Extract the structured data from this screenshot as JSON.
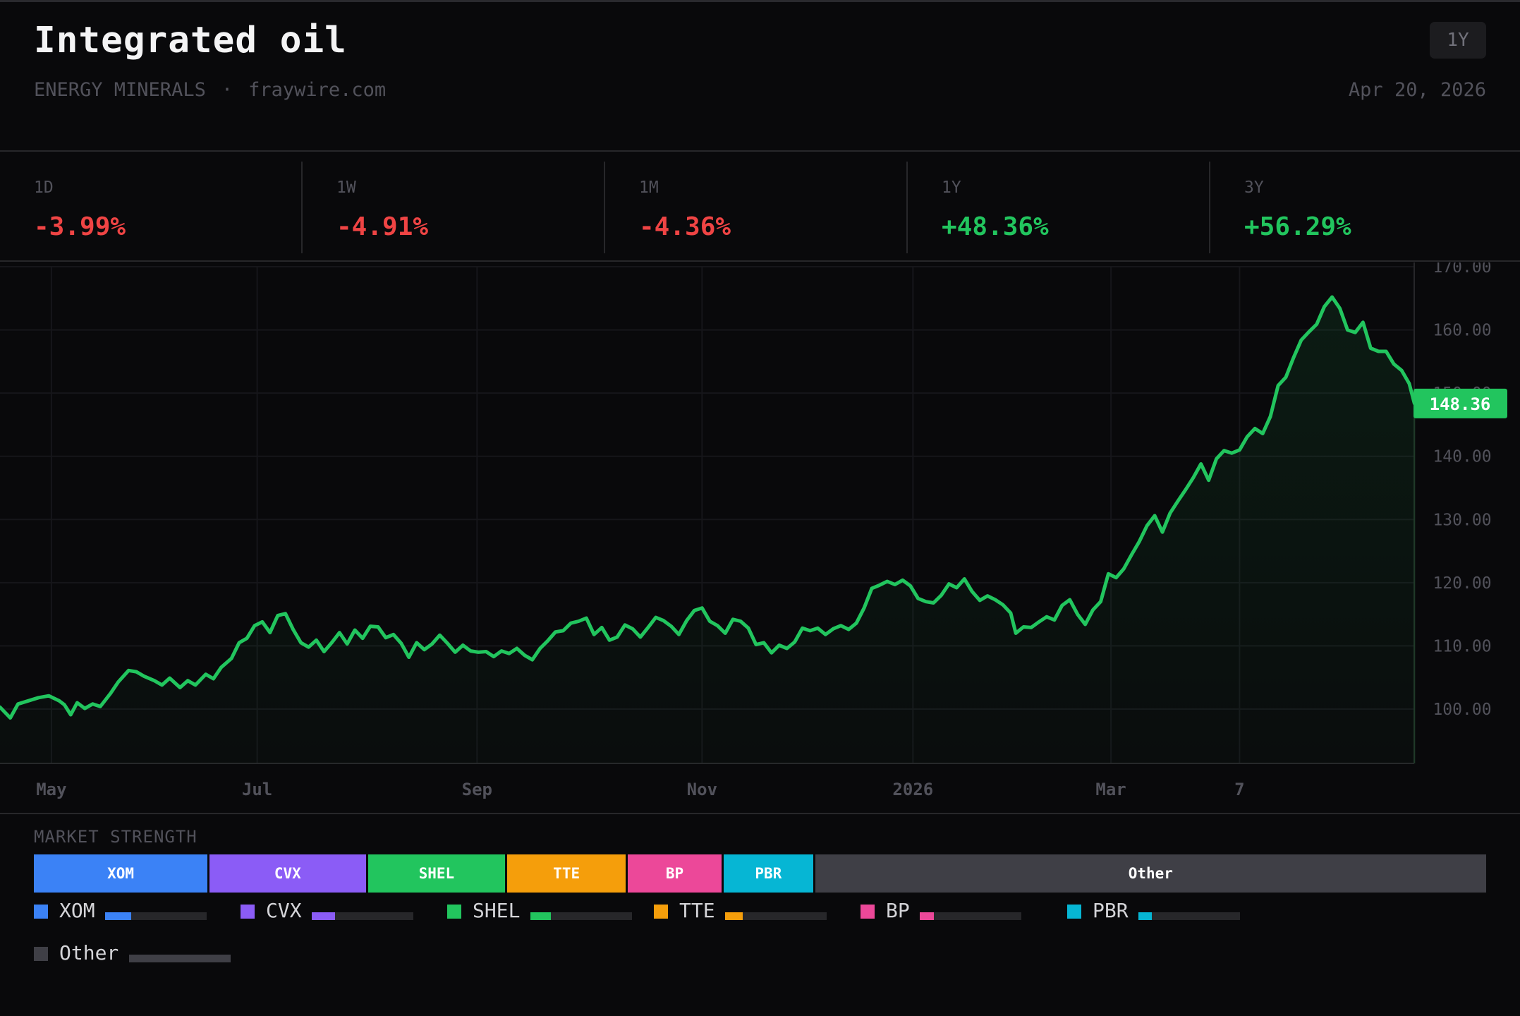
{
  "header": {
    "title": "Integrated oil",
    "category": "ENERGY MINERALS",
    "separator": "·",
    "source": "fraywire.com",
    "range_button": "1Y",
    "date": "Apr 20, 2026"
  },
  "stats": [
    {
      "label": "1D",
      "value": "-3.99%",
      "direction": "down"
    },
    {
      "label": "1W",
      "value": "-4.91%",
      "direction": "down"
    },
    {
      "label": "1M",
      "value": "-4.36%",
      "direction": "down"
    },
    {
      "label": "1Y",
      "value": "+48.36%",
      "direction": "up"
    },
    {
      "label": "3Y",
      "value": "+56.29%",
      "direction": "up"
    }
  ],
  "colors": {
    "up": "#22c55e",
    "down": "#ef4444",
    "line": "#22c55e",
    "background": "#09090b"
  },
  "chart_data": {
    "type": "area",
    "last_value_label": "148.36",
    "y_ticks": [
      "100.00",
      "110.00",
      "120.00",
      "130.00",
      "140.00",
      "150.00",
      "160.00",
      "170.00"
    ],
    "y_tick_values": [
      100,
      110,
      120,
      130,
      140,
      150,
      160,
      170
    ],
    "ylim": [
      91.4,
      170
    ],
    "x_ticks": [
      {
        "label": "May",
        "x": 0.04
      },
      {
        "label": "Jul",
        "x": 0.2
      },
      {
        "label": "Sep",
        "x": 0.371
      },
      {
        "label": "Nov",
        "x": 0.546
      },
      {
        "label": "2026",
        "x": 0.71
      },
      {
        "label": "Mar",
        "x": 0.864
      },
      {
        "label": "7",
        "x": 0.964
      }
    ],
    "grid": true,
    "series": [
      {
        "points": [
          [
            0.0,
            100.3
          ],
          [
            0.008,
            98.6
          ],
          [
            0.014,
            100.8
          ],
          [
            0.022,
            101.3
          ],
          [
            0.03,
            101.8
          ],
          [
            0.038,
            102.1
          ],
          [
            0.046,
            101.3
          ],
          [
            0.05,
            100.7
          ],
          [
            0.055,
            99.1
          ],
          [
            0.06,
            101.0
          ],
          [
            0.066,
            100.1
          ],
          [
            0.072,
            100.8
          ],
          [
            0.078,
            100.4
          ],
          [
            0.086,
            102.5
          ],
          [
            0.092,
            104.3
          ],
          [
            0.1,
            106.1
          ],
          [
            0.106,
            105.9
          ],
          [
            0.112,
            105.2
          ],
          [
            0.12,
            104.5
          ],
          [
            0.126,
            103.8
          ],
          [
            0.132,
            104.9
          ],
          [
            0.14,
            103.4
          ],
          [
            0.146,
            104.5
          ],
          [
            0.152,
            103.8
          ],
          [
            0.16,
            105.5
          ],
          [
            0.166,
            104.8
          ],
          [
            0.172,
            106.6
          ],
          [
            0.18,
            108.0
          ],
          [
            0.186,
            110.5
          ],
          [
            0.192,
            111.2
          ],
          [
            0.198,
            113.2
          ],
          [
            0.204,
            113.8
          ],
          [
            0.21,
            112.1
          ],
          [
            0.216,
            114.8
          ],
          [
            0.222,
            115.1
          ],
          [
            0.228,
            112.6
          ],
          [
            0.234,
            110.5
          ],
          [
            0.24,
            109.8
          ],
          [
            0.246,
            110.9
          ],
          [
            0.252,
            109.1
          ],
          [
            0.258,
            110.5
          ],
          [
            0.264,
            112.1
          ],
          [
            0.27,
            110.3
          ],
          [
            0.276,
            112.5
          ],
          [
            0.282,
            111.2
          ],
          [
            0.288,
            113.1
          ],
          [
            0.294,
            113.0
          ],
          [
            0.3,
            111.3
          ],
          [
            0.306,
            111.8
          ],
          [
            0.312,
            110.4
          ],
          [
            0.318,
            108.2
          ],
          [
            0.324,
            110.5
          ],
          [
            0.33,
            109.4
          ],
          [
            0.336,
            110.3
          ],
          [
            0.342,
            111.7
          ],
          [
            0.348,
            110.4
          ],
          [
            0.354,
            109.0
          ],
          [
            0.36,
            110.1
          ],
          [
            0.366,
            109.2
          ],
          [
            0.372,
            109.0
          ],
          [
            0.378,
            109.1
          ],
          [
            0.384,
            108.3
          ],
          [
            0.39,
            109.2
          ],
          [
            0.396,
            108.8
          ],
          [
            0.402,
            109.6
          ],
          [
            0.408,
            108.5
          ],
          [
            0.414,
            107.8
          ],
          [
            0.42,
            109.6
          ],
          [
            0.426,
            110.8
          ],
          [
            0.432,
            112.2
          ],
          [
            0.438,
            112.4
          ],
          [
            0.444,
            113.6
          ],
          [
            0.45,
            113.9
          ],
          [
            0.456,
            114.4
          ],
          [
            0.462,
            111.8
          ],
          [
            0.468,
            112.9
          ],
          [
            0.474,
            110.9
          ],
          [
            0.48,
            111.4
          ],
          [
            0.486,
            113.3
          ],
          [
            0.492,
            112.7
          ],
          [
            0.498,
            111.4
          ],
          [
            0.504,
            112.9
          ],
          [
            0.51,
            114.5
          ],
          [
            0.516,
            114.0
          ],
          [
            0.522,
            113.1
          ],
          [
            0.528,
            111.8
          ],
          [
            0.534,
            114.0
          ],
          [
            0.54,
            115.6
          ],
          [
            0.546,
            116.0
          ],
          [
            0.552,
            113.9
          ],
          [
            0.558,
            113.2
          ],
          [
            0.564,
            112.0
          ],
          [
            0.57,
            114.2
          ],
          [
            0.576,
            113.9
          ],
          [
            0.582,
            112.8
          ],
          [
            0.588,
            110.2
          ],
          [
            0.594,
            110.5
          ],
          [
            0.6,
            108.9
          ],
          [
            0.606,
            110.1
          ],
          [
            0.612,
            109.6
          ],
          [
            0.618,
            110.6
          ],
          [
            0.624,
            112.8
          ],
          [
            0.63,
            112.4
          ],
          [
            0.636,
            112.8
          ],
          [
            0.642,
            111.8
          ],
          [
            0.648,
            112.7
          ],
          [
            0.654,
            113.2
          ],
          [
            0.66,
            112.6
          ],
          [
            0.666,
            113.6
          ],
          [
            0.672,
            116.0
          ],
          [
            0.678,
            119.1
          ],
          [
            0.684,
            119.6
          ],
          [
            0.69,
            120.2
          ],
          [
            0.696,
            119.7
          ],
          [
            0.702,
            120.4
          ],
          [
            0.708,
            119.5
          ],
          [
            0.714,
            117.5
          ],
          [
            0.72,
            117.0
          ],
          [
            0.726,
            116.8
          ],
          [
            0.732,
            118.0
          ],
          [
            0.738,
            119.8
          ],
          [
            0.744,
            119.2
          ],
          [
            0.75,
            120.6
          ],
          [
            0.756,
            118.6
          ],
          [
            0.762,
            117.2
          ],
          [
            0.768,
            117.9
          ],
          [
            0.774,
            117.3
          ],
          [
            0.78,
            116.5
          ],
          [
            0.786,
            115.2
          ],
          [
            0.79,
            112.0
          ],
          [
            0.796,
            113.0
          ],
          [
            0.802,
            112.9
          ],
          [
            0.808,
            113.8
          ],
          [
            0.814,
            114.6
          ],
          [
            0.82,
            114.1
          ],
          [
            0.826,
            116.4
          ],
          [
            0.832,
            117.3
          ],
          [
            0.838,
            115.0
          ],
          [
            0.844,
            113.4
          ],
          [
            0.85,
            115.7
          ],
          [
            0.856,
            117.0
          ],
          [
            0.862,
            121.4
          ],
          [
            0.868,
            120.8
          ],
          [
            0.874,
            122.2
          ],
          [
            0.88,
            124.4
          ],
          [
            0.886,
            126.5
          ],
          [
            0.892,
            129.0
          ],
          [
            0.898,
            130.6
          ],
          [
            0.904,
            128.0
          ],
          [
            0.91,
            131.0
          ],
          [
            0.916,
            132.9
          ],
          [
            0.922,
            134.7
          ],
          [
            0.928,
            136.6
          ],
          [
            0.934,
            138.8
          ],
          [
            0.94,
            136.2
          ],
          [
            0.946,
            139.6
          ],
          [
            0.952,
            140.9
          ],
          [
            0.958,
            140.5
          ],
          [
            0.964,
            141.0
          ],
          [
            0.97,
            143.1
          ],
          [
            0.976,
            144.4
          ],
          [
            0.982,
            143.6
          ],
          [
            0.988,
            146.3
          ],
          [
            0.994,
            151.2
          ],
          [
            1.0,
            152.5
          ],
          [
            1.006,
            155.6
          ],
          [
            1.012,
            158.4
          ],
          [
            1.018,
            159.7
          ],
          [
            1.024,
            160.9
          ],
          [
            1.03,
            163.7
          ],
          [
            1.036,
            165.2
          ],
          [
            1.042,
            163.4
          ],
          [
            1.048,
            160.0
          ],
          [
            1.054,
            159.6
          ],
          [
            1.06,
            161.2
          ],
          [
            1.066,
            157.1
          ],
          [
            1.072,
            156.6
          ],
          [
            1.078,
            156.6
          ],
          [
            1.084,
            154.6
          ],
          [
            1.09,
            153.6
          ],
          [
            1.096,
            151.5
          ],
          [
            1.1,
            148.36
          ]
        ]
      }
    ]
  },
  "market_strength": {
    "label": "MARKET STRENGTH",
    "segments": [
      {
        "name": "XOM",
        "share": 12.1,
        "color": "#3b82f6"
      },
      {
        "name": "CVX",
        "share": 10.9,
        "color": "#8b5cf6"
      },
      {
        "name": "SHEL",
        "share": 9.6,
        "color": "#22c55e"
      },
      {
        "name": "TTE",
        "share": 8.3,
        "color": "#f59e0b"
      },
      {
        "name": "BP",
        "share": 6.6,
        "color": "#ec4899"
      },
      {
        "name": "PBR",
        "share": 6.3,
        "color": "#06b6d4"
      },
      {
        "name": "Other",
        "share": 46.2,
        "color": "#3f3f46"
      }
    ]
  }
}
